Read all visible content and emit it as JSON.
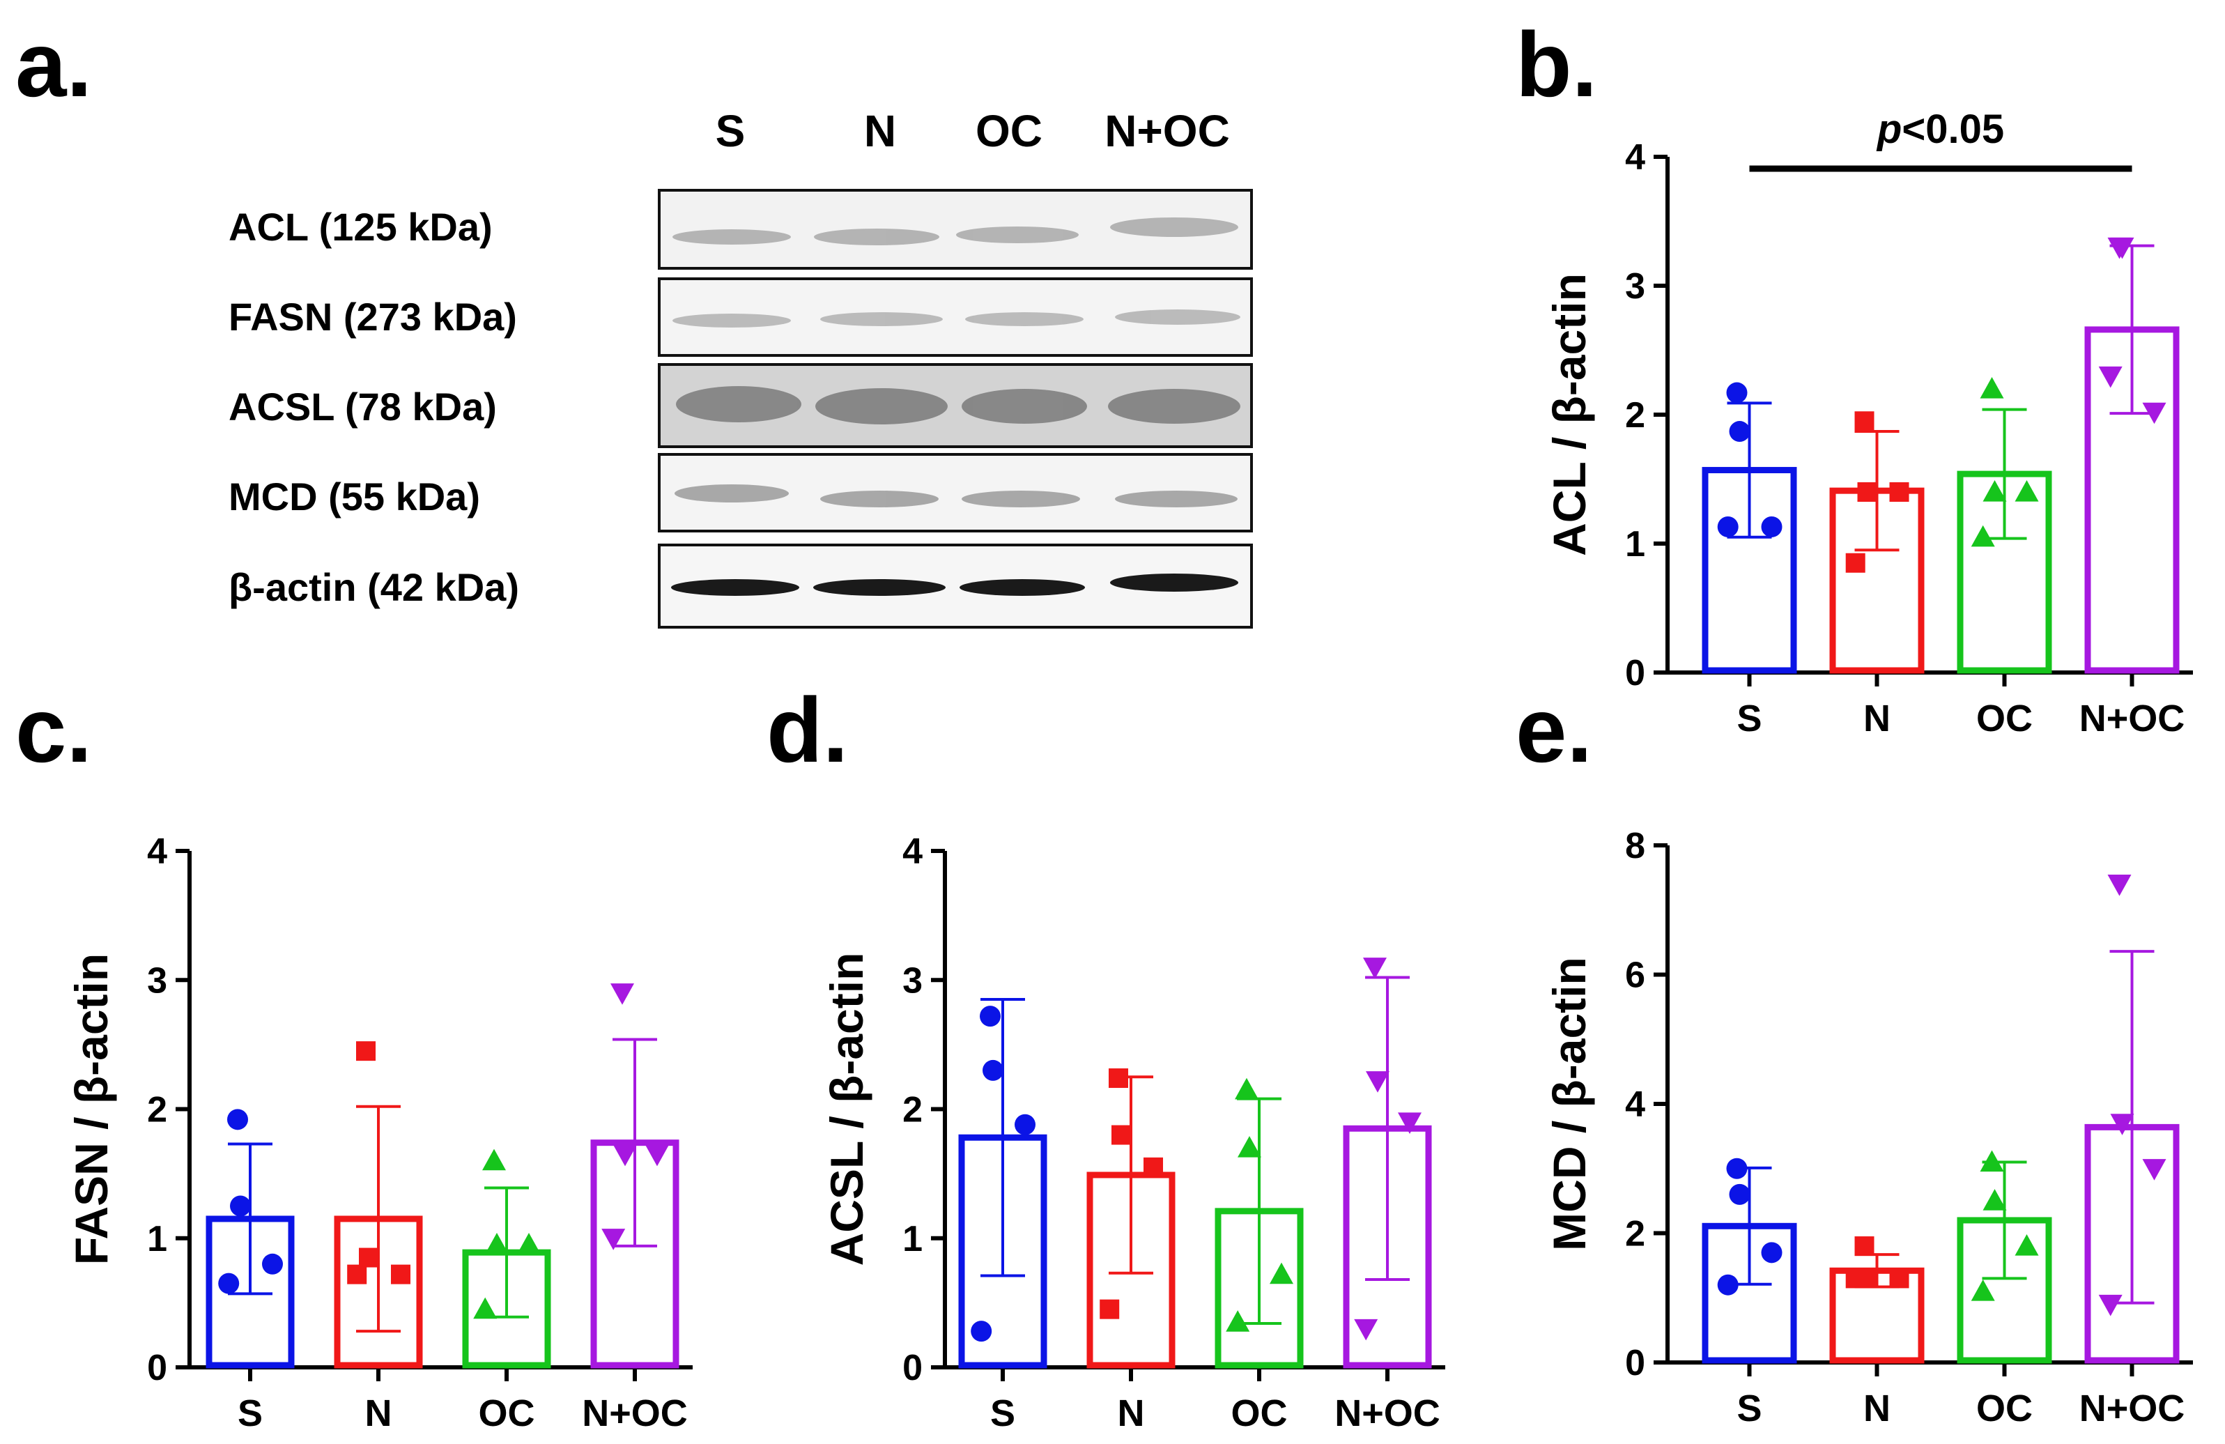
{
  "panel_labels": {
    "a": "a.",
    "b": "b.",
    "c": "c.",
    "d": "d.",
    "e": "e."
  },
  "western_blot": {
    "lane_labels": [
      "S",
      "N",
      "OC",
      "N+OC"
    ],
    "rows": [
      {
        "label": "ACL (125 kDa)"
      },
      {
        "label": "FASN (273 kDa)"
      },
      {
        "label": "ACSL (78 kDa)"
      },
      {
        "label": "MCD (55 kDa)"
      },
      {
        "label": "β-actin (42 kDa)"
      }
    ]
  },
  "colors": {
    "S": "#0b14e6",
    "N": "#f01818",
    "OC": "#16c41c",
    "N+OC": "#a618e0"
  },
  "chart_data": [
    {
      "panel": "b",
      "type": "bar",
      "title": "",
      "categories": [
        "S",
        "N",
        "OC",
        "N+OC"
      ],
      "xlabel": "",
      "ylabel": "ACL / β-actin",
      "ylim": [
        0,
        4
      ],
      "yticks": [
        0,
        1,
        2,
        3,
        4
      ],
      "means": [
        1.57,
        1.41,
        1.54,
        2.66
      ],
      "sd": [
        0.52,
        0.46,
        0.5,
        0.65
      ],
      "points": [
        [
          2.17,
          1.87,
          1.13,
          1.13
        ],
        [
          1.95,
          1.4,
          1.4,
          0.85
        ],
        [
          2.2,
          1.4,
          1.4,
          1.05
        ],
        [
          3.3,
          3.3,
          2.02,
          2.3
        ]
      ],
      "annotation": {
        "text": "p<0.05",
        "italic_part": "p",
        "from": "S",
        "to": "N+OC"
      },
      "grid": false
    },
    {
      "panel": "c",
      "type": "bar",
      "title": "",
      "categories": [
        "S",
        "N",
        "OC",
        "N+OC"
      ],
      "xlabel": "",
      "ylabel": "FASN / β-actin",
      "ylim": [
        0,
        4
      ],
      "yticks": [
        0,
        1,
        2,
        3,
        4
      ],
      "means": [
        1.15,
        1.15,
        0.89,
        1.74
      ],
      "sd": [
        0.58,
        0.87,
        0.5,
        0.8
      ],
      "points": [
        [
          1.92,
          1.25,
          0.8,
          0.65
        ],
        [
          2.45,
          0.85,
          0.72,
          0.72
        ],
        [
          1.6,
          0.95,
          0.95,
          0.45
        ],
        [
          2.9,
          1.65,
          1.65,
          1.0
        ]
      ],
      "grid": false
    },
    {
      "panel": "d",
      "type": "bar",
      "title": "",
      "categories": [
        "S",
        "N",
        "OC",
        "N+OC"
      ],
      "xlabel": "",
      "ylabel": "ACSL / β-actin",
      "ylim": [
        0,
        4
      ],
      "yticks": [
        0,
        1,
        2,
        3,
        4
      ],
      "means": [
        1.78,
        1.49,
        1.21,
        1.85
      ],
      "sd": [
        1.07,
        0.76,
        0.87,
        1.17
      ],
      "points": [
        [
          2.72,
          2.3,
          1.88,
          0.28
        ],
        [
          2.24,
          1.8,
          1.55,
          0.45
        ],
        [
          2.15,
          1.7,
          0.72,
          0.35
        ],
        [
          3.1,
          2.22,
          1.9,
          0.3
        ]
      ],
      "grid": false
    },
    {
      "panel": "e",
      "type": "bar",
      "title": "",
      "categories": [
        "S",
        "N",
        "OC",
        "N+OC"
      ],
      "xlabel": "",
      "ylabel": "MCD / β-actin",
      "ylim": [
        0,
        8
      ],
      "yticks": [
        0,
        2,
        4,
        6,
        8
      ],
      "means": [
        2.11,
        1.42,
        2.2,
        3.64
      ],
      "sd": [
        0.9,
        0.25,
        0.9,
        2.72
      ],
      "points": [
        [
          3.0,
          2.6,
          1.7,
          1.2
        ],
        [
          1.8,
          1.3,
          1.3,
          1.3
        ],
        [
          3.1,
          2.5,
          1.8,
          1.1
        ],
        [
          7.4,
          3.7,
          3.0,
          0.9
        ]
      ],
      "grid": false
    }
  ]
}
